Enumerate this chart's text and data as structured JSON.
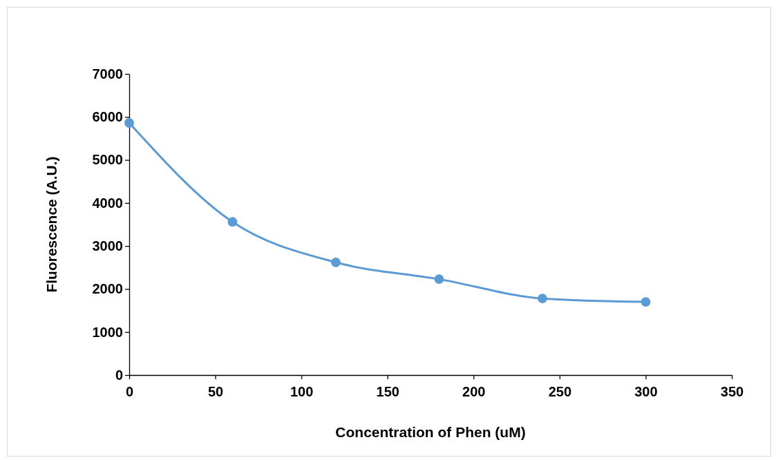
{
  "chart_data": {
    "type": "line",
    "xlabel": "Concentration of Phen (uM)",
    "ylabel": "Fluorescence (A.U.)",
    "x": [
      0,
      60,
      120,
      180,
      240,
      300
    ],
    "series": [
      {
        "color": "#5b9bd5",
        "values": [
          5860,
          3560,
          2620,
          2230,
          1780,
          1700
        ]
      }
    ],
    "xlim": [
      0,
      350
    ],
    "xticks": [
      0,
      50,
      100,
      150,
      200,
      250,
      300,
      350
    ],
    "ylim": [
      0,
      7000
    ],
    "yticks": [
      0,
      1000,
      2000,
      3000,
      4000,
      5000,
      6000,
      7000
    ],
    "marker": "circle",
    "line_style": "solid"
  }
}
